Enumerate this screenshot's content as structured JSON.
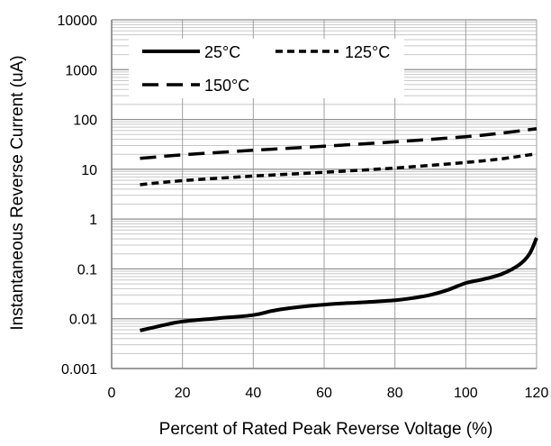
{
  "chart_data": {
    "type": "line",
    "title": "",
    "xlabel": "Percent of Rated Peak Reverse Voltage (%)",
    "ylabel": "Instantaneous Reverse Current (uA)",
    "x_scale": "linear",
    "y_scale": "log",
    "xlim": [
      0,
      120
    ],
    "ylim": [
      0.001,
      10000
    ],
    "x_ticks": [
      "0",
      "20",
      "40",
      "60",
      "80",
      "100",
      "120"
    ],
    "y_ticks": [
      "10000",
      "1000",
      "100",
      "10",
      "1",
      "0.1",
      "0.01",
      "0.001"
    ],
    "grid": true,
    "legend_position": "top-left",
    "series": [
      {
        "name": "25°C",
        "style": "solid",
        "color": "#000000",
        "x": [
          8,
          15,
          20,
          30,
          40,
          45,
          50,
          60,
          70,
          80,
          85,
          90,
          95,
          100,
          105,
          110,
          115,
          118,
          120
        ],
        "y": [
          0.0058,
          0.0075,
          0.0088,
          0.0102,
          0.0118,
          0.0142,
          0.0162,
          0.0192,
          0.0212,
          0.0235,
          0.026,
          0.03,
          0.038,
          0.052,
          0.062,
          0.078,
          0.12,
          0.2,
          0.42
        ]
      },
      {
        "name": "125°C",
        "style": "dotted",
        "color": "#000000",
        "x": [
          8,
          20,
          40,
          60,
          80,
          100,
          110,
          120
        ],
        "y": [
          4.9,
          5.9,
          7.3,
          8.7,
          10.6,
          13.7,
          16.2,
          20.5
        ]
      },
      {
        "name": "150°C",
        "style": "dashed",
        "color": "#000000",
        "x": [
          8,
          20,
          40,
          60,
          80,
          100,
          110,
          120
        ],
        "y": [
          16.5,
          19.5,
          24.0,
          29.0,
          35.5,
          45.0,
          53.0,
          65.0
        ]
      }
    ]
  }
}
